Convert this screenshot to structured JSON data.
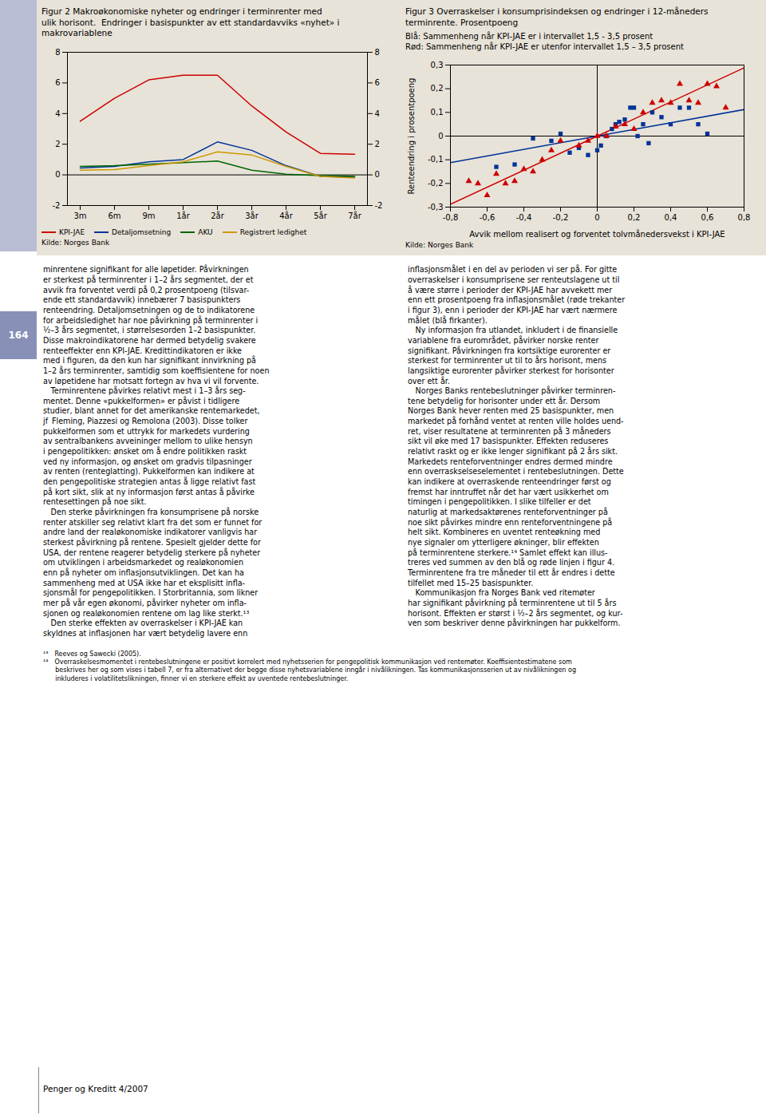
{
  "chart_data": [
    {
      "type": "line",
      "title": "Figur 2 Makroøkonomiske nyheter og endringer i terminrenter med\nulik horisont.  Endringer i basispunkter av ett standardavviks «nyhet» i\nmakrovariablene",
      "source": "Kilde: Norges Bank",
      "categories": [
        "3m",
        "6m",
        "9m",
        "1år",
        "2år",
        "3år",
        "4år",
        "5år",
        "7år"
      ],
      "series": [
        {
          "name": "KPI-JAE",
          "color": "#cc0000",
          "values": [
            3.5,
            5.0,
            6.2,
            6.5,
            6.5,
            4.5,
            2.8,
            1.4,
            1.35
          ]
        },
        {
          "name": "Detaljomsetning",
          "color": "#003399",
          "values": [
            0.45,
            0.55,
            0.85,
            1.0,
            2.15,
            1.6,
            0.6,
            -0.1,
            -0.15
          ]
        },
        {
          "name": "AKU",
          "color": "#006600",
          "values": [
            0.55,
            0.6,
            0.7,
            0.8,
            0.9,
            0.3,
            0.05,
            -0.05,
            -0.1
          ]
        },
        {
          "name": "Registrert ledighet",
          "color": "#cc9900",
          "values": [
            0.3,
            0.35,
            0.6,
            0.85,
            1.5,
            1.3,
            0.55,
            -0.1,
            -0.2
          ]
        }
      ],
      "ylim": [
        -2,
        8
      ],
      "yticks": [
        -2,
        0,
        2,
        4,
        6,
        8
      ],
      "legend": "bottom",
      "grid": false
    },
    {
      "type": "scatter",
      "title": "Figur 3 Overraskelser i konsumprisindeksen og endringer i 12-måneders\nterminrente. Prosentpoeng",
      "subtitle": "Blå: Sammenheng når KPI-JAE er i intervallet 1,5 - 3,5 prosent\nRød: Sammenheng når KPI-JAE er utenfor intervallet 1,5 – 3,5 prosent",
      "xlabel": "Avvik mellom realisert og forventet tolvmånedersvekst i KPI-JAE",
      "ylabel": "Renteendring i prosentpoeng",
      "source": "Kilde: Norges Bank",
      "xlim": [
        -0.8,
        0.8
      ],
      "ylim": [
        -0.3,
        0.3
      ],
      "xticks": [
        {
          "value": -0.8,
          "label": "-0,8"
        },
        {
          "value": -0.6,
          "label": "-0,6"
        },
        {
          "value": -0.4,
          "label": "-0,4"
        },
        {
          "value": -0.2,
          "label": "-0,2"
        },
        0,
        {
          "value": 0.2,
          "label": "0,2"
        },
        {
          "value": 0.4,
          "label": "0,4"
        },
        {
          "value": 0.6,
          "label": "0,6"
        },
        {
          "value": 0.8,
          "label": "0,8"
        }
      ],
      "yticks": [
        {
          "value": -0.3,
          "label": "-0,3"
        },
        {
          "value": -0.2,
          "label": "-0,2"
        },
        {
          "value": -0.1,
          "label": "-0,1"
        },
        0,
        {
          "value": 0.1,
          "label": "0,1"
        },
        {
          "value": 0.2,
          "label": "0,2"
        },
        {
          "value": 0.3,
          "label": "0,3"
        }
      ],
      "series": [
        {
          "type": "line",
          "color": "#003399",
          "x": [
            -0.8,
            0.8
          ],
          "values": [
            -0.112,
            0.112
          ]
        },
        {
          "type": "line",
          "color": "#cc0000",
          "x": [
            -0.8,
            0.8
          ],
          "values": [
            -0.288,
            0.288
          ]
        },
        {
          "type": "scatter",
          "marker": "square",
          "color": "#003399",
          "x": [
            -0.55,
            -0.45,
            -0.35,
            -0.25,
            -0.2,
            -0.15,
            -0.1,
            -0.05,
            0.0,
            0.02,
            0.05,
            0.08,
            0.1,
            0.12,
            0.15,
            0.18,
            0.2,
            0.22,
            0.25,
            0.28,
            0.3,
            0.35,
            0.4,
            0.45,
            0.5,
            0.55,
            0.6
          ],
          "values": [
            -0.13,
            -0.12,
            -0.01,
            -0.02,
            0.01,
            -0.07,
            -0.05,
            -0.08,
            -0.06,
            -0.04,
            0.0,
            0.03,
            0.05,
            0.06,
            0.07,
            0.12,
            0.12,
            0.0,
            0.05,
            -0.03,
            0.1,
            0.08,
            0.05,
            0.12,
            0.12,
            0.05,
            0.01
          ]
        },
        {
          "type": "scatter",
          "marker": "triangle",
          "color": "#cc0000",
          "x": [
            -0.7,
            -0.65,
            -0.6,
            -0.55,
            -0.5,
            -0.45,
            -0.4,
            -0.35,
            -0.3,
            -0.25,
            -0.2,
            -0.1,
            -0.05,
            0.0,
            0.05,
            0.1,
            0.15,
            0.2,
            0.25,
            0.3,
            0.35,
            0.4,
            0.45,
            0.5,
            0.55,
            0.6,
            0.65,
            0.7
          ],
          "values": [
            -0.19,
            -0.2,
            -0.25,
            -0.16,
            -0.2,
            -0.19,
            -0.14,
            -0.15,
            -0.1,
            -0.06,
            -0.02,
            -0.04,
            -0.02,
            0.0,
            0.0,
            0.04,
            0.05,
            0.03,
            0.1,
            0.14,
            0.15,
            0.14,
            0.22,
            0.15,
            0.14,
            0.22,
            0.21,
            0.12
          ]
        }
      ],
      "grid": false
    }
  ],
  "page_number": "164",
  "body_text_left": "minrentene signifikant for alle løpetider. Påvirkningen\ner sterkest på terminrenter i 1–2 års segmentet, der et\navvik fra forventet verdi på 0,2 prosentpoeng (tilsvar-\nende ett standardavvik) innebærer 7 basispunkters\nrenteendring. Detaljomsetningen og de to indikatorene\nfor arbeidsledighet har noe påvirkning på terminrenter i\n½–3 års segmentet, i størrelsesorden 1–2 basispunkter.\nDisse makroindikatorene har dermed betydelig svakere\nrenteeffekter enn KPI-JAE. Kredittindikatoren er ikke\nmed i figuren, da den kun har signifikant innvirkning på\n1–2 års terminrenter, samtidig som koeffisientene for noen\nav løpetidene har motsatt fortegn av hva vi vil forvente.\n Terminrentene påvirkes relativt mest i 1–3 års seg-\nmentet. Denne «pukkelformen» er påvist i tidligere\nstudier, blant annet for det amerikanske rentemarkedet,\njf  Fleming, Piazzesi og Remolona (2003). Disse tolker\npukkelformen som et uttrykk for markedets vurdering\nav sentralbankens avveininger mellom to ulike hensyn\ni pengepolitikken: ønsket om å endre politikken raskt\nved ny informasjon, og ønsket om gradvis tilpasninger\nav renten (renteglatting). Pukkelformen kan indikere at\nden pengepolitiske strategien antas å ligge relativt fast\npå kort sikt, slik at ny informasjon først antas å påvirke\nrentesettingen på noe sikt.\n Den sterke påvirkningen fra konsumprisene på norske\nrenter atskiller seg relativt klart fra det som er funnet for\nandre land der realøkonomiske indikatorer vanligvis har\nsterkest påvirkning på rentene. Spesielt gjelder dette for\nUSA, der rentene reagerer betydelig sterkere på nyheter\nom utviklingen i arbeidsmarkedet og realøkonomien\nenn på nyheter om inflasjonsutviklingen. Det kan ha\nsammenheng med at USA ikke har et eksplisitt infla-\nsjonsmål for pengepolitikken. I Storbritannia, som likner\nmer på vår egen økonomi, påvirker nyheter om infla-\nsjonen og realøkonomien rentene om lag like sterkt.¹³\n Den sterke effekten av overraskelser i KPI-JAE kan\nskyldnes at inflasjonen har vært betydelig lavere enn",
  "body_text_right": "inflasjonsmålet i en del av perioden vi ser på. For gitte\noverraskelser i konsumprisene ser renteutslagene ut til\nå være større i perioder der KPI-JAE har avvekett mer\nenn ett prosentpoeng fra inflasjonsmålet (røde trekanter\ni figur 3), enn i perioder der KPI-JAE har vært nærmere\nmålet (blå firkanter).\n Ny informasjon fra utlandet, inkludert i de finansielle\nvariablene fra eurområdet, påvirker norske renter\nsignifikant. Påvirkningen fra kortsiktige eurorenter er\nsterkest for terminrenter ut til to års horisont, mens\nlangsiktige eurorenter påvirker sterkest for horisonter\nover ett år.\n Norges Banks rentebeslutninger påvirker terminren-\ntene betydelig for horisonter under ett år. Dersom\nNorges Bank hever renten med 25 basispunkter, men\nmarkedet på forhånd ventet at renten ville holdes uend-\nret, viser resultatene at terminrenten på 3 måneders\nsikt vil øke med 17 basispunkter. Effekten reduseres\nrelativt raskt og er ikke lenger signifikant på 2 års sikt.\nMarkedets renteforventninger endres dermed mindre\nenn overraskselseselementet i rentebeslutningen. Dette\nkan indikere at overraskende renteendringer først og\nfremst har inntruffet når det har vært usikkerhet om\ntimingen i pengepolitikken. I slike tilfeller er det\nnaturlig at markedsaktørenes renteforventninger på\nnoe sikt påvirkes mindre enn renteforventningene på\nhelt sikt. Kombineres en uventet renteøkning med\nnye signaler om ytterligere økninger, blir effekten\npå terminrentene sterkere.¹⁴ Samlet effekt kan illus-\ntreres ved summen av den blå og røde linjen i figur 4.\nTerminrentene fra tre måneder til ett år endres i dette\ntilfellet med 15–25 basispunkter.\n Kommunikasjon fra Norges Bank ved ritemøter\nhar signifikant påvirkning på terminrentene ut til 5 års\nhorisont. Effekten er størst i ½–2 års segmentet, og kur-\nven som beskriver denne påvirkningen har pukkelform.",
  "footnotes": [
    "¹³ Reeves og Sawecki (2005).",
    "¹⁴ Overraskelsesmomentet i rentebeslutningene er positivt korrelert med nyhetsserien for pengepolitisk kommunikasjon ved rentemøter. Koeffisientestimatene som\n      beskrives her og som vises i tabell 7, er fra alternativet der begge disse nyhetsvariablene inngår i nivålikningen. Tas kommunikasjonsserien ut av nivålikningen og\n      inkluderes i volatilitetslikningen, finner vi en sterkere effekt av uventede rentebeslutninger."
  ],
  "bottom_text": "Penger og Kreditt 4/2007"
}
